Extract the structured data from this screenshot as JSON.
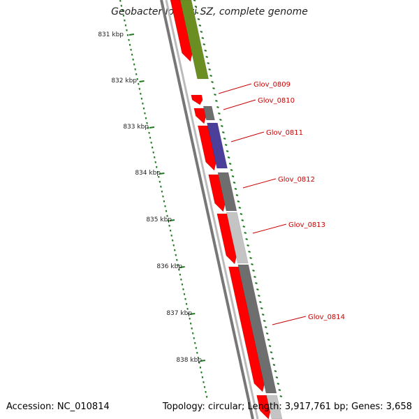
{
  "title": "Geobacter lovleyi SZ, complete genome",
  "footer": {
    "accession": "Accession: NC_010814",
    "stats": "Topology: circular; Length: 3,917,761 bp; Genes: 3,658"
  },
  "scale_labels": [
    "831 kbp",
    "832 kbp",
    "833 kbp",
    "834 kbp",
    "835 kbp",
    "836 kbp",
    "837 kbp",
    "838 kbp"
  ],
  "gene_labels": [
    "Glov_0809",
    "Glov_0810",
    "Glov_0811",
    "Glov_0812",
    "Glov_0813",
    "Glov_0814"
  ],
  "colors": {
    "cds": "#ff0000",
    "gene_green": "#6b8e23",
    "gene_purple": "#4b3f9a",
    "gene_gray": "#6e6e6e",
    "gene_light": "#c4c4c4",
    "backbone": "#808080",
    "ruler": "#1f7a1f",
    "label": "#cc0000"
  }
}
